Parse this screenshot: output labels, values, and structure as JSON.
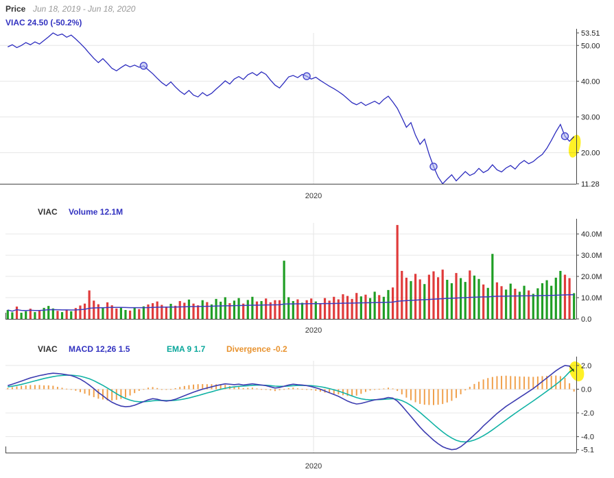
{
  "panels": {
    "price": {
      "title": "Price",
      "date_range": "Jun 18, 2019 - Jun 18, 2020",
      "legend": "VIAC 24.50 (-50.2%)"
    },
    "volume": {
      "symbol": "VIAC",
      "legend": "Volume 12.1M"
    },
    "macd": {
      "symbol": "VIAC",
      "legend_macd": "MACD 12,26 1.5",
      "legend_ema": "EMA 9 1.7",
      "legend_div": "Divergence -0.2"
    }
  },
  "chart_data": [
    {
      "type": "line",
      "name": "price",
      "title": "VIAC daily close price",
      "x_range_label": "Jun 18, 2019 - Jun 18, 2020",
      "ylim": [
        11.28,
        53.51
      ],
      "yticks": [
        {
          "v": 53.51,
          "label": "53.51",
          "grid": false
        },
        {
          "v": 50,
          "label": "50.00",
          "grid": true
        },
        {
          "v": 40,
          "label": "40.00",
          "grid": true
        },
        {
          "v": 30,
          "label": "30.00",
          "grid": true
        },
        {
          "v": 20,
          "label": "20.00",
          "grid": true
        },
        {
          "v": 11.28,
          "label": "11.28",
          "grid": false
        }
      ],
      "xticks": [
        {
          "index": 68,
          "label": "2020"
        }
      ],
      "series": [
        {
          "name": "VIAC",
          "color": "#2b2bbe",
          "values": [
            49.6,
            50.2,
            49.4,
            50.0,
            50.8,
            50.2,
            51.0,
            50.4,
            51.4,
            52.4,
            53.51,
            52.8,
            53.2,
            52.3,
            52.9,
            51.8,
            50.6,
            49.3,
            47.8,
            46.4,
            45.2,
            46.3,
            45.0,
            43.6,
            42.9,
            43.8,
            44.6,
            44.0,
            44.5,
            43.9,
            44.3,
            43.2,
            42.1,
            40.8,
            39.6,
            38.7,
            39.8,
            38.4,
            37.2,
            36.3,
            37.4,
            36.1,
            35.6,
            36.8,
            35.9,
            36.6,
            37.8,
            38.9,
            40.1,
            39.2,
            40.6,
            41.3,
            40.5,
            41.8,
            42.4,
            41.6,
            42.6,
            41.9,
            40.3,
            38.9,
            38.1,
            39.6,
            41.2,
            41.6,
            41.0,
            41.9,
            41.4,
            40.6,
            41.1,
            40.2,
            39.4,
            38.6,
            37.9,
            37.1,
            36.2,
            35.1,
            34.0,
            33.4,
            34.1,
            33.2,
            33.8,
            34.4,
            33.6,
            34.9,
            35.8,
            34.2,
            32.4,
            29.8,
            27.1,
            28.4,
            24.9,
            22.3,
            23.8,
            19.6,
            16.1,
            13.2,
            11.28,
            12.6,
            13.8,
            12.1,
            13.4,
            14.7,
            13.6,
            14.2,
            15.6,
            14.4,
            15.1,
            16.6,
            15.2,
            14.6,
            15.7,
            16.4,
            15.4,
            16.9,
            17.8,
            16.9,
            17.5,
            18.6,
            19.5,
            21.2,
            23.4,
            25.8,
            27.9,
            24.6,
            23.2,
            24.5
          ]
        }
      ],
      "last_value": 24.5,
      "change_pct": "-50.2%",
      "annotations": {
        "marker_indices": [
          30,
          66,
          94,
          123
        ],
        "marker_fill": "#a9b0ef",
        "marker_stroke": "#4444cc",
        "highlight": "last-point",
        "highlight_color": "#ffef00"
      }
    },
    {
      "type": "bar",
      "name": "volume",
      "title": "VIAC daily volume (millions of shares)",
      "current_value": "12.1M",
      "ylim": [
        0,
        45.2
      ],
      "yticks": [
        {
          "v": 40,
          "label": "40.0M",
          "grid": true
        },
        {
          "v": 30,
          "label": "30.0M",
          "grid": true
        },
        {
          "v": 20,
          "label": "20.0M",
          "grid": true
        },
        {
          "v": 10,
          "label": "10.0M",
          "grid": true
        },
        {
          "v": 0,
          "label": "0.0",
          "grid": false
        }
      ],
      "xticks": [
        {
          "index": 68,
          "label": "2020"
        }
      ],
      "values": [
        4.2,
        3.1,
        5.8,
        2.9,
        3.6,
        4.8,
        3.2,
        4.1,
        5.2,
        6.1,
        4.9,
        3.8,
        3.2,
        4.4,
        3.6,
        5.1,
        6.3,
        7.2,
        13.4,
        8.6,
        6.9,
        5.2,
        7.8,
        6.4,
        4.9,
        5.6,
        4.2,
        3.9,
        5.3,
        4.6,
        5.9,
        6.8,
        7.4,
        8.2,
        6.6,
        5.8,
        7.1,
        6.2,
        8.4,
        7.6,
        9.1,
        7.2,
        6.4,
        8.8,
        7.9,
        6.8,
        9.4,
        8.1,
        10.2,
        7.4,
        8.6,
        9.8,
        7.2,
        8.9,
        10.4,
        8.2,
        8.4,
        9.6,
        7.8,
        8.8,
        8.8,
        27.4,
        10.2,
        8.4,
        9.2,
        7.6,
        8.8,
        9.6,
        8.2,
        7.4,
        9.8,
        8.6,
        10.4,
        9.2,
        11.6,
        10.8,
        9.4,
        12.2,
        10.6,
        11.4,
        9.8,
        12.8,
        11.2,
        10.4,
        13.6,
        14.8,
        44.2,
        22.6,
        19.4,
        17.8,
        21.2,
        18.6,
        16.4,
        20.8,
        22.4,
        19.6,
        23.2,
        18.4,
        16.8,
        21.6,
        19.2,
        17.4,
        22.8,
        20.4,
        18.8,
        16.2,
        14.6,
        30.6,
        17.2,
        15.4,
        13.8,
        16.6,
        14.2,
        12.8,
        15.6,
        13.4,
        11.8,
        14.4,
        16.8,
        18.2,
        15.6,
        19.4,
        22.6,
        20.8,
        19.2,
        12.1
      ],
      "colors": {
        "up": "#1f9e24",
        "down": "#e03b3b",
        "ma_line": "#3d3dbe"
      }
    },
    {
      "type": "line",
      "name": "macd",
      "title": "MACD 12,26 with EMA 9 signal and divergence histogram",
      "last_values": {
        "macd": 1.5,
        "ema": 1.7,
        "divergence": -0.2
      },
      "ylim": [
        -5.35,
        2.4
      ],
      "yticks": [
        {
          "v": 2,
          "label": "2.0",
          "grid": true
        },
        {
          "v": 0,
          "label": "0.0",
          "grid": true
        },
        {
          "v": -2,
          "label": "-2.0",
          "grid": true
        },
        {
          "v": -4,
          "label": "-4.0",
          "grid": true
        },
        {
          "v": -5.1,
          "label": "-5.1",
          "grid": false
        }
      ],
      "xticks": [
        {
          "index": 68,
          "label": "2020"
        }
      ],
      "series": [
        {
          "name": "MACD 12,26",
          "color": "#3b3bb0",
          "values": [
            0.3,
            0.42,
            0.55,
            0.68,
            0.82,
            0.95,
            1.05,
            1.15,
            1.22,
            1.3,
            1.35,
            1.32,
            1.28,
            1.22,
            1.15,
            1.02,
            0.85,
            0.62,
            0.35,
            0.05,
            -0.28,
            -0.55,
            -0.85,
            -1.1,
            -1.28,
            -1.42,
            -1.48,
            -1.45,
            -1.35,
            -1.2,
            -1.05,
            -0.9,
            -0.8,
            -0.85,
            -0.95,
            -1.0,
            -0.95,
            -0.85,
            -0.7,
            -0.55,
            -0.4,
            -0.25,
            -0.12,
            0.0,
            0.1,
            0.2,
            0.3,
            0.38,
            0.45,
            0.42,
            0.38,
            0.42,
            0.35,
            0.4,
            0.45,
            0.4,
            0.35,
            0.3,
            0.2,
            0.1,
            0.15,
            0.25,
            0.35,
            0.42,
            0.38,
            0.35,
            0.3,
            0.22,
            0.12,
            0.0,
            -0.15,
            -0.3,
            -0.45,
            -0.6,
            -0.8,
            -1.0,
            -1.15,
            -1.25,
            -1.2,
            -1.1,
            -1.0,
            -0.9,
            -0.85,
            -0.8,
            -0.7,
            -0.75,
            -1.0,
            -1.4,
            -1.85,
            -2.3,
            -2.75,
            -3.2,
            -3.6,
            -3.95,
            -4.3,
            -4.6,
            -4.85,
            -5.0,
            -5.1,
            -5.05,
            -4.85,
            -4.55,
            -4.2,
            -3.85,
            -3.5,
            -3.1,
            -2.75,
            -2.4,
            -2.05,
            -1.75,
            -1.45,
            -1.2,
            -0.95,
            -0.7,
            -0.45,
            -0.2,
            0.05,
            0.35,
            0.65,
            0.95,
            1.25,
            1.55,
            1.8,
            2.0,
            1.95,
            1.5
          ]
        },
        {
          "name": "EMA 9",
          "color": "#10b2a4",
          "values": [
            0.2,
            0.25,
            0.32,
            0.4,
            0.5,
            0.6,
            0.7,
            0.8,
            0.9,
            0.98,
            1.06,
            1.12,
            1.16,
            1.18,
            1.18,
            1.15,
            1.1,
            1.0,
            0.88,
            0.72,
            0.52,
            0.32,
            0.1,
            -0.14,
            -0.38,
            -0.6,
            -0.78,
            -0.92,
            -1.02,
            -1.06,
            -1.06,
            -1.03,
            -0.98,
            -0.95,
            -0.95,
            -0.96,
            -0.96,
            -0.94,
            -0.89,
            -0.82,
            -0.74,
            -0.64,
            -0.54,
            -0.43,
            -0.32,
            -0.22,
            -0.11,
            -0.01,
            0.08,
            0.15,
            0.2,
            0.24,
            0.26,
            0.29,
            0.32,
            0.34,
            0.34,
            0.33,
            0.3,
            0.26,
            0.24,
            0.24,
            0.26,
            0.29,
            0.31,
            0.32,
            0.31,
            0.3,
            0.26,
            0.21,
            0.14,
            0.05,
            -0.05,
            -0.16,
            -0.29,
            -0.43,
            -0.57,
            -0.71,
            -0.81,
            -0.87,
            -0.89,
            -0.89,
            -0.88,
            -0.86,
            -0.83,
            -0.81,
            -0.85,
            -0.96,
            -1.14,
            -1.37,
            -1.65,
            -1.96,
            -2.29,
            -2.62,
            -2.96,
            -3.29,
            -3.6,
            -3.88,
            -4.12,
            -4.31,
            -4.42,
            -4.45,
            -4.4,
            -4.29,
            -4.13,
            -3.92,
            -3.69,
            -3.43,
            -3.15,
            -2.87,
            -2.59,
            -2.31,
            -2.04,
            -1.77,
            -1.51,
            -1.25,
            -0.99,
            -0.72,
            -0.45,
            -0.17,
            0.11,
            0.4,
            0.7,
            1.05,
            1.45,
            1.7
          ]
        }
      ],
      "divergence_color": "#f0a04c",
      "annotations": {
        "highlight": "last-point",
        "highlight_color": "#ffef00"
      }
    }
  ]
}
